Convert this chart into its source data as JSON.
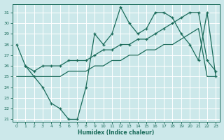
{
  "xlabel": "Humidex (Indice chaleur)",
  "bg_color": "#cce8ea",
  "grid_color": "#ffffff",
  "line_color": "#1a6b5a",
  "xlim": [
    -0.5,
    23.5
  ],
  "ylim": [
    20.8,
    31.8
  ],
  "xticks": [
    0,
    1,
    2,
    3,
    4,
    5,
    6,
    7,
    8,
    9,
    10,
    11,
    12,
    13,
    14,
    15,
    16,
    17,
    18,
    19,
    20,
    21,
    22,
    23
  ],
  "yticks": [
    21,
    22,
    23,
    24,
    25,
    26,
    27,
    28,
    29,
    30,
    31
  ],
  "line1_x": [
    0,
    1,
    2,
    3,
    4,
    5,
    6,
    7,
    8,
    9,
    10,
    11,
    12,
    13,
    14,
    15,
    16,
    17,
    18,
    19,
    20,
    21,
    22,
    23
  ],
  "line1_y": [
    28.0,
    26.0,
    25.0,
    24.0,
    22.5,
    22.0,
    21.0,
    21.0,
    24.0,
    29.0,
    28.0,
    29.0,
    31.5,
    30.0,
    29.0,
    29.5,
    31.0,
    31.0,
    30.5,
    29.0,
    28.0,
    26.5,
    31.0,
    25.0
  ],
  "line2_x": [
    1,
    2,
    3,
    4,
    5,
    6,
    7,
    8,
    9,
    10,
    11,
    12,
    13,
    14,
    15,
    16,
    17,
    18,
    19,
    20,
    21,
    22,
    23
  ],
  "line2_y": [
    26.0,
    25.5,
    26.0,
    26.0,
    26.0,
    26.5,
    26.5,
    26.5,
    27.0,
    27.5,
    27.5,
    28.0,
    28.0,
    28.5,
    28.5,
    29.0,
    29.5,
    30.0,
    30.5,
    31.0,
    31.0,
    26.5,
    25.5
  ],
  "line3_x": [
    0,
    1,
    2,
    3,
    4,
    5,
    6,
    7,
    8,
    9,
    10,
    11,
    12,
    13,
    14,
    15,
    16,
    17,
    18,
    19,
    20,
    21,
    22,
    23
  ],
  "line3_y": [
    25.0,
    25.0,
    25.0,
    25.0,
    25.0,
    25.0,
    25.5,
    25.5,
    25.5,
    26.0,
    26.0,
    26.5,
    26.5,
    27.0,
    27.0,
    27.5,
    27.5,
    28.0,
    28.0,
    28.5,
    29.0,
    29.5,
    25.0,
    25.0
  ]
}
